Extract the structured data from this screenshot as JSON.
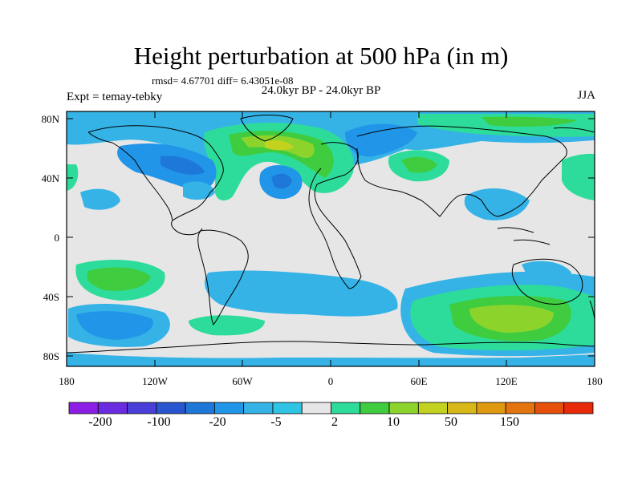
{
  "header": {
    "title": "Height perturbation at 500 hPa (in m)",
    "stats": "rmsd= 4.67701 diff= 6.43051e-08",
    "period": "24.0kyr BP - 24.0kyr BP",
    "experiment": "Expt = temay-tebky",
    "season": "JJA"
  },
  "axes": {
    "lat_labels": [
      "80N",
      "40N",
      "0",
      "40S",
      "80S"
    ],
    "lon_labels": [
      "180",
      "120W",
      "60W",
      "0",
      "60E",
      "120E",
      "180"
    ]
  },
  "colorbar": {
    "labels": [
      "-200",
      "-100",
      "-20",
      "-5",
      "2",
      "10",
      "50",
      "150"
    ],
    "colors": [
      "#8c1ee6",
      "#6a2ce0",
      "#4a3fd8",
      "#2a55d0",
      "#1e78d9",
      "#2196e8",
      "#35b3e6",
      "#2fc4e4",
      "#e6e6e6",
      "#2ddc9a",
      "#3fcc3f",
      "#8cd42c",
      "#c2d21e",
      "#d8b818",
      "#e09a12",
      "#e4740e",
      "#e6500a",
      "#e82a08"
    ]
  },
  "map": {
    "background_color": "#e6e6e6",
    "coastline_color": "#000000"
  }
}
